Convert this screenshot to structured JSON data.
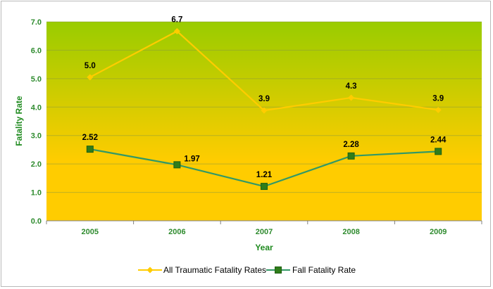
{
  "chart_data": {
    "type": "line",
    "title": "",
    "xlabel": "Year",
    "ylabel": "Fatality Rate",
    "categories": [
      "2005",
      "2006",
      "2007",
      "2008",
      "2009"
    ],
    "ylim": [
      0,
      7
    ],
    "yticks": [
      "0.0",
      "1.0",
      "2.0",
      "3.0",
      "4.0",
      "5.0",
      "6.0",
      "7.0"
    ],
    "grid": true,
    "legend_position": "bottom",
    "background_gradient": [
      "#99cc00",
      "#ffcc00"
    ],
    "series": [
      {
        "name": "All Traumatic Fatality Rates",
        "values": [
          5.05,
          6.67,
          3.88,
          4.33,
          3.9
        ],
        "labels": [
          "5.0",
          "6.7",
          "3.9",
          "4.3",
          "3.9"
        ],
        "color": "#ffcc00",
        "marker": "diamond"
      },
      {
        "name": "Fall Fatality Rate",
        "values": [
          2.52,
          1.97,
          1.21,
          2.28,
          2.44
        ],
        "labels": [
          "2.52",
          "1.97",
          "1.21",
          "2.28",
          "2.44"
        ],
        "color": "#339966",
        "marker": "square",
        "marker_color": "#2f7d1a"
      }
    ]
  }
}
